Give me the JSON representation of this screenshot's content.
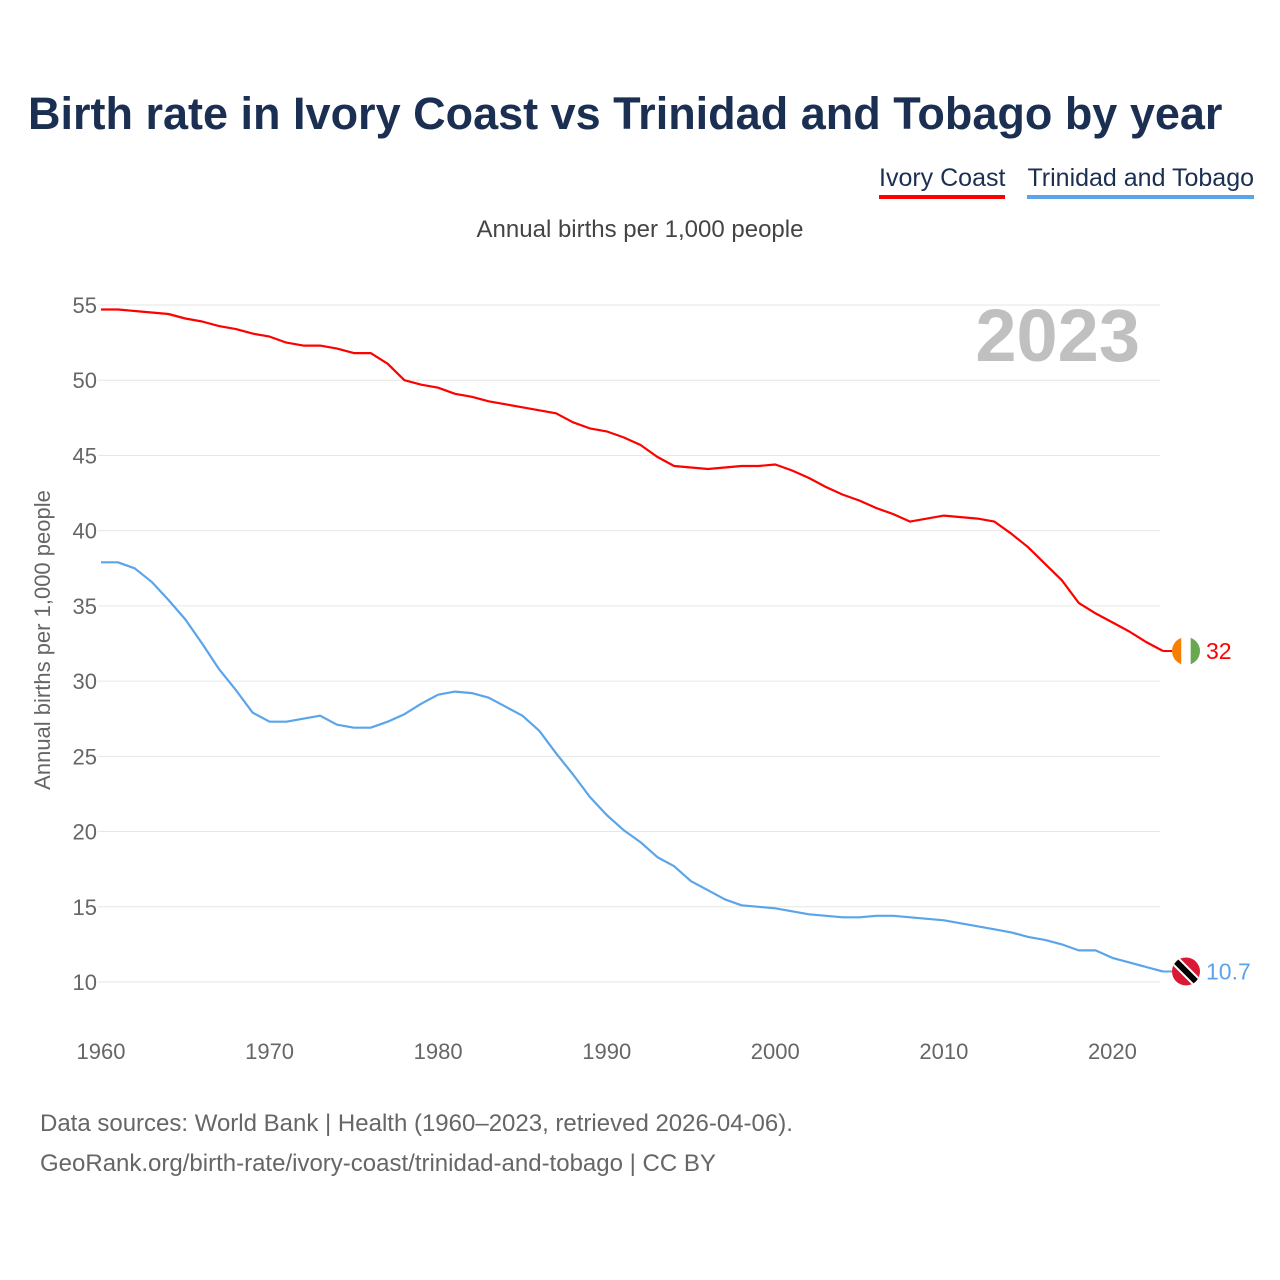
{
  "title": "Birth rate in Ivory Coast vs Trinidad and Tobago by year",
  "subtitle": "Annual births per 1,000 people",
  "footer": {
    "line1": "Data sources: World Bank | Health (1960–2023, retrieved 2026-04-06).",
    "line2": "GeoRank.org/birth-rate/ivory-coast/trinidad-and-tobago | CC BY"
  },
  "year_label": "2023",
  "chart_data": {
    "type": "line",
    "title": "Birth rate in Ivory Coast vs Trinidad and Tobago by year",
    "ylabel": "Annual births per 1,000 people",
    "xlabel": "",
    "xlim": [
      1960,
      2023
    ],
    "ylim": [
      10,
      55
    ],
    "yticks": [
      10,
      15,
      20,
      25,
      30,
      35,
      40,
      45,
      50,
      55
    ],
    "xticks": [
      1960,
      1970,
      1980,
      1990,
      2000,
      2010,
      2020
    ],
    "grid": true,
    "legend_position": "top-right",
    "x_start": 1960,
    "series": [
      {
        "name": "Ivory Coast",
        "color": "#ff0000",
        "end_label": "32",
        "flag": "ivory-coast",
        "values": [
          54.7,
          54.7,
          54.6,
          54.5,
          54.4,
          54.1,
          53.9,
          53.6,
          53.4,
          53.1,
          52.9,
          52.5,
          52.3,
          52.3,
          52.1,
          51.8,
          51.8,
          51.1,
          50.0,
          49.7,
          49.5,
          49.1,
          48.9,
          48.6,
          48.4,
          48.2,
          48.0,
          47.8,
          47.2,
          46.8,
          46.6,
          46.2,
          45.7,
          44.9,
          44.3,
          44.2,
          44.1,
          44.2,
          44.3,
          44.3,
          44.4,
          44.0,
          43.5,
          42.9,
          42.4,
          42.0,
          41.5,
          41.1,
          40.6,
          40.8,
          41.0,
          40.9,
          40.8,
          40.6,
          39.8,
          38.9,
          37.8,
          36.7,
          35.2,
          34.5,
          33.9,
          33.3,
          32.6,
          32.0
        ]
      },
      {
        "name": "Trinidad and Tobago",
        "color": "#5aa5ea",
        "end_label": "10.7",
        "flag": "trinidad-and-tobago",
        "values": [
          37.9,
          37.9,
          37.5,
          36.6,
          35.4,
          34.1,
          32.5,
          30.8,
          29.4,
          27.9,
          27.3,
          27.3,
          27.5,
          27.7,
          27.1,
          26.9,
          26.9,
          27.3,
          27.8,
          28.5,
          29.1,
          29.3,
          29.2,
          28.9,
          28.3,
          27.7,
          26.7,
          25.2,
          23.8,
          22.3,
          21.1,
          20.1,
          19.3,
          18.3,
          17.7,
          16.7,
          16.1,
          15.5,
          15.1,
          15.0,
          14.9,
          14.7,
          14.5,
          14.4,
          14.3,
          14.3,
          14.4,
          14.4,
          14.3,
          14.2,
          14.1,
          13.9,
          13.7,
          13.5,
          13.3,
          13.0,
          12.8,
          12.5,
          12.1,
          12.1,
          11.6,
          11.3,
          11.0,
          10.7
        ]
      }
    ]
  }
}
